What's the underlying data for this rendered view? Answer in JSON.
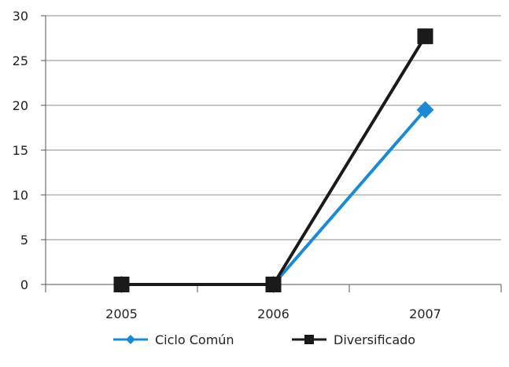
{
  "chart_data": {
    "type": "line",
    "categories": [
      "2005",
      "2006",
      "2007"
    ],
    "series": [
      {
        "name": "Ciclo Común",
        "values": [
          0,
          0,
          19.5
        ],
        "color": "#1a8ad4",
        "marker": "diamond"
      },
      {
        "name": "Diversificado",
        "values": [
          0,
          0,
          27.7
        ],
        "color": "#1a1a1a",
        "marker": "square"
      }
    ],
    "ylim": [
      0,
      30
    ],
    "yticks": [
      0,
      5,
      10,
      15,
      20,
      25,
      30
    ],
    "grid": true,
    "legend_position": "bottom"
  }
}
